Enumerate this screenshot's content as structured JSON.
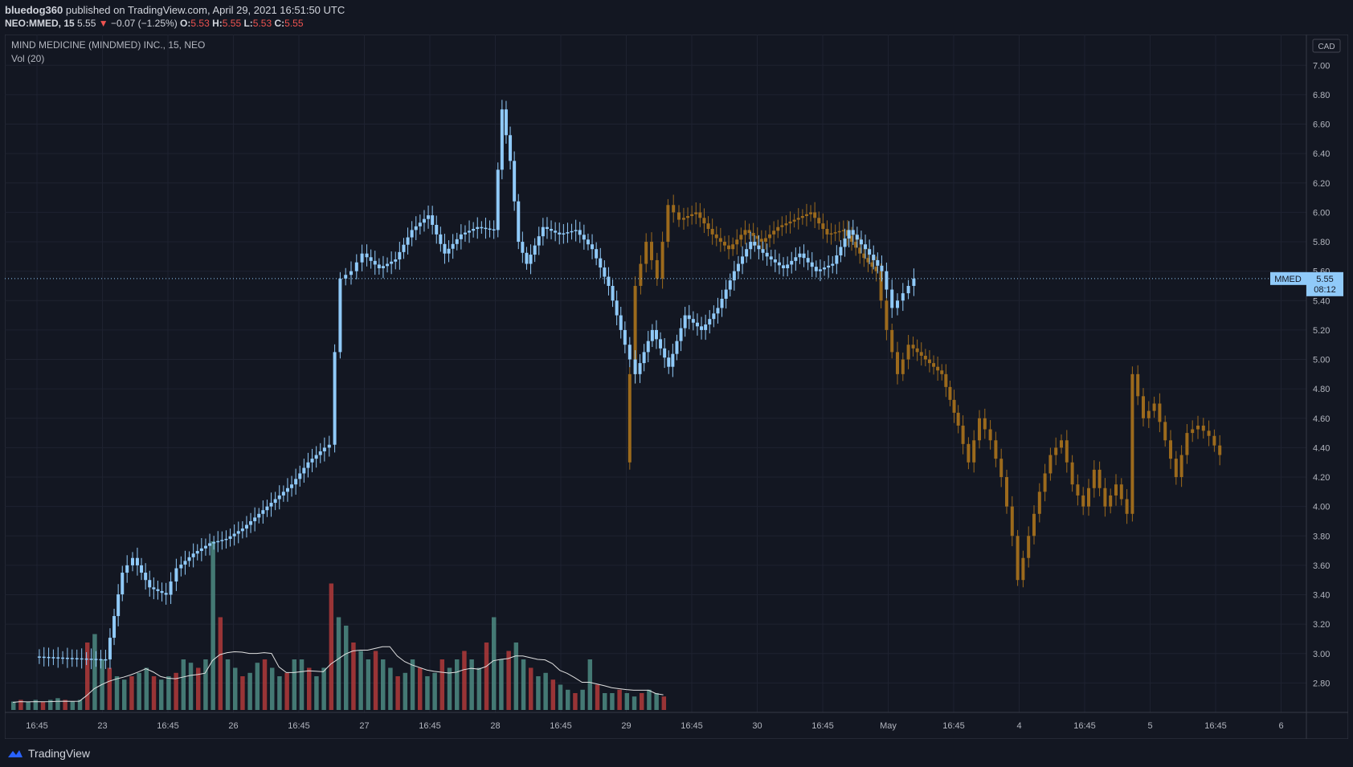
{
  "header": {
    "publisher": "bluedog360",
    "published_text": " published on TradingView.com, April 29, 2021 16:51:50 UTC",
    "symbol": "NEO:MMED, 15",
    "last": "5.55",
    "change": "−0.07 (−1.25%)",
    "o_label": "O:",
    "o": "5.53",
    "h_label": "H:",
    "h": "5.55",
    "l_label": "L:",
    "l": "5.53",
    "c_label": "C:",
    "c": "5.55"
  },
  "legend": {
    "title": "MIND MEDICINE (MINDMED) INC., 15, NEO",
    "volume": "Vol (20)"
  },
  "currency": "CAD",
  "price_tag": {
    "ticker": "MMED",
    "price": "5.55",
    "countdown": "08:12"
  },
  "footer": {
    "brand": "TradingView"
  },
  "colors": {
    "background": "#131722",
    "candle": "#90caf9",
    "projection": "#9c6a1c",
    "vol_up": "#4e8b83",
    "vol_down": "#b23a3a",
    "grid": "#1e2230"
  },
  "chart_data": {
    "type": "candlestick",
    "ylim": [
      2.6,
      7.1
    ],
    "yticks": [
      "2.80",
      "3.00",
      "3.20",
      "3.40",
      "3.60",
      "3.80",
      "4.00",
      "4.20",
      "4.40",
      "4.60",
      "4.80",
      "5.00",
      "5.20",
      "5.40",
      "5.60",
      "5.80",
      "6.00",
      "6.20",
      "6.40",
      "6.60",
      "6.80",
      "7.00"
    ],
    "xticks": [
      "16:45",
      "23",
      "16:45",
      "26",
      "16:45",
      "27",
      "16:45",
      "28",
      "16:45",
      "29",
      "16:45",
      "30",
      "16:45",
      "May",
      "16:45",
      "4",
      "16:45",
      "5",
      "16:45",
      "6"
    ],
    "price_path": [
      [
        0,
        2.98
      ],
      [
        0.6,
        2.97
      ],
      [
        1.3,
        2.96
      ],
      [
        1.6,
        3.55
      ],
      [
        1.8,
        3.65
      ],
      [
        2.1,
        3.45
      ],
      [
        2.4,
        3.4
      ],
      [
        2.6,
        3.58
      ],
      [
        2.9,
        3.68
      ],
      [
        3.2,
        3.75
      ],
      [
        3.5,
        3.78
      ],
      [
        3.8,
        3.85
      ],
      [
        4.1,
        3.95
      ],
      [
        4.4,
        4.05
      ],
      [
        4.7,
        4.15
      ],
      [
        5.0,
        4.3
      ],
      [
        5.3,
        4.4
      ],
      [
        5.4,
        4.42
      ],
      [
        5.5,
        5.05
      ],
      [
        5.6,
        5.55
      ],
      [
        5.8,
        5.6
      ],
      [
        6.0,
        5.72
      ],
      [
        6.3,
        5.62
      ],
      [
        6.6,
        5.68
      ],
      [
        6.9,
        5.88
      ],
      [
        7.2,
        5.98
      ],
      [
        7.5,
        5.72
      ],
      [
        7.8,
        5.85
      ],
      [
        8.1,
        5.9
      ],
      [
        8.4,
        5.88
      ],
      [
        8.55,
        6.7
      ],
      [
        8.7,
        6.35
      ],
      [
        8.85,
        5.8
      ],
      [
        9.0,
        5.65
      ],
      [
        9.3,
        5.9
      ],
      [
        9.6,
        5.85
      ],
      [
        9.9,
        5.88
      ],
      [
        10.2,
        5.75
      ],
      [
        10.5,
        5.5
      ],
      [
        10.8,
        5.1
      ],
      [
        11.0,
        4.9
      ],
      [
        11.3,
        5.2
      ],
      [
        11.6,
        4.95
      ],
      [
        11.9,
        5.3
      ],
      [
        12.2,
        5.2
      ],
      [
        12.5,
        5.35
      ],
      [
        12.8,
        5.6
      ],
      [
        13.1,
        5.8
      ],
      [
        13.4,
        5.7
      ],
      [
        13.7,
        5.62
      ],
      [
        14.0,
        5.72
      ],
      [
        14.3,
        5.6
      ],
      [
        14.6,
        5.65
      ],
      [
        14.9,
        5.88
      ],
      [
        15.2,
        5.75
      ],
      [
        15.5,
        5.6
      ],
      [
        15.7,
        5.35
      ],
      [
        15.9,
        5.45
      ],
      [
        16.1,
        5.55
      ]
    ],
    "projection_path": [
      [
        10.8,
        4.3
      ],
      [
        11.0,
        5.5
      ],
      [
        11.2,
        5.8
      ],
      [
        11.4,
        5.55
      ],
      [
        11.6,
        6.05
      ],
      [
        11.8,
        5.95
      ],
      [
        12.1,
        6.0
      ],
      [
        12.4,
        5.85
      ],
      [
        12.7,
        5.75
      ],
      [
        13.0,
        5.88
      ],
      [
        13.3,
        5.8
      ],
      [
        13.6,
        5.9
      ],
      [
        13.9,
        5.95
      ],
      [
        14.2,
        6.0
      ],
      [
        14.5,
        5.85
      ],
      [
        14.8,
        5.88
      ],
      [
        15.1,
        5.72
      ],
      [
        15.4,
        5.6
      ],
      [
        15.6,
        5.2
      ],
      [
        15.8,
        4.9
      ],
      [
        16.0,
        5.1
      ],
      [
        16.3,
        5.0
      ],
      [
        16.6,
        4.9
      ],
      [
        16.9,
        4.55
      ],
      [
        17.1,
        4.3
      ],
      [
        17.3,
        4.6
      ],
      [
        17.5,
        4.45
      ],
      [
        17.7,
        4.2
      ],
      [
        17.9,
        3.8
      ],
      [
        18.0,
        3.5
      ],
      [
        18.2,
        3.8
      ],
      [
        18.4,
        4.1
      ],
      [
        18.6,
        4.35
      ],
      [
        18.8,
        4.45
      ],
      [
        19.0,
        4.15
      ],
      [
        19.2,
        4.0
      ],
      [
        19.4,
        4.25
      ],
      [
        19.6,
        4.0
      ],
      [
        19.8,
        4.15
      ],
      [
        20.0,
        3.95
      ],
      [
        20.1,
        4.9
      ],
      [
        20.3,
        4.6
      ],
      [
        20.5,
        4.7
      ],
      [
        20.7,
        4.45
      ],
      [
        20.9,
        4.2
      ],
      [
        21.1,
        4.5
      ],
      [
        21.3,
        4.55
      ],
      [
        21.5,
        4.48
      ],
      [
        21.7,
        4.35
      ]
    ],
    "volume": [
      0.05,
      0.06,
      0.05,
      0.06,
      0.05,
      0.06,
      0.07,
      0.06,
      0.05,
      0.06,
      0.4,
      0.45,
      0.3,
      0.25,
      0.2,
      0.18,
      0.2,
      0.22,
      0.25,
      0.2,
      0.18,
      0.2,
      0.22,
      0.3,
      0.28,
      0.25,
      0.3,
      1.0,
      0.55,
      0.3,
      0.25,
      0.2,
      0.22,
      0.28,
      0.3,
      0.25,
      0.2,
      0.22,
      0.3,
      0.3,
      0.25,
      0.2,
      0.25,
      0.75,
      0.55,
      0.5,
      0.4,
      0.35,
      0.3,
      0.35,
      0.3,
      0.25,
      0.2,
      0.22,
      0.3,
      0.25,
      0.2,
      0.22,
      0.3,
      0.25,
      0.3,
      0.35,
      0.3,
      0.25,
      0.4,
      0.55,
      0.3,
      0.35,
      0.4,
      0.3,
      0.25,
      0.2,
      0.22,
      0.18,
      0.15,
      0.12,
      0.1,
      0.12,
      0.3,
      0.15,
      0.1,
      0.1,
      0.12,
      0.1,
      0.08,
      0.1,
      0.12,
      0.1,
      0.08
    ]
  }
}
